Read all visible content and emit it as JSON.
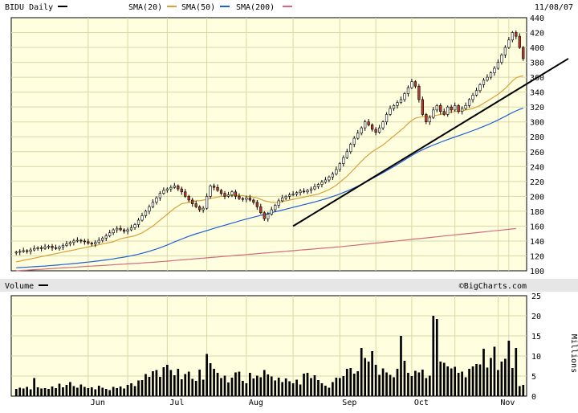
{
  "header": {
    "symbol": "BIDU Daily",
    "date": "11/08/07",
    "legend": [
      {
        "label": "SMA(20)",
        "color": "#d9a13b"
      },
      {
        "label": "SMA(50)",
        "color": "#1f5fd6"
      },
      {
        "label": "SMA(200)",
        "color": "#d46a7a"
      }
    ],
    "symbol_swatch_color": "#000000"
  },
  "volume_header": {
    "label": "Volume",
    "swatch_color": "#000000"
  },
  "watermark": "©BigCharts.com",
  "volume_unit_label": "Millions",
  "colors": {
    "plot_bg": "#ffffe0",
    "grid": "#d8d8a8",
    "up_candle": "#ffffff",
    "down_candle": "#c0392b",
    "candle_outline": "#000000",
    "volume_bar": "#000000",
    "trendline": "#000000"
  },
  "chart_data": [
    {
      "type": "candlestick",
      "title": "BIDU Daily",
      "x_labels": [
        "Jun",
        "Jul",
        "Aug",
        "Sep",
        "Oct",
        "Nov"
      ],
      "x_label_positions": [
        22,
        44,
        66,
        92,
        112,
        136
      ],
      "ylim": [
        100,
        440
      ],
      "y_ticks": [
        100,
        120,
        140,
        160,
        180,
        200,
        220,
        240,
        260,
        280,
        300,
        320,
        340,
        360,
        380,
        400,
        420,
        440
      ],
      "n_days": 142,
      "closes": [
        125,
        126,
        127,
        126,
        128,
        130,
        131,
        130,
        132,
        133,
        131,
        130,
        132,
        134,
        136,
        138,
        140,
        141,
        140,
        139,
        137,
        136,
        138,
        141,
        144,
        147,
        151,
        155,
        157,
        155,
        153,
        155,
        158,
        162,
        168,
        174,
        180,
        186,
        192,
        198,
        204,
        208,
        210,
        212,
        214,
        210,
        206,
        200,
        195,
        190,
        186,
        182,
        184,
        200,
        214,
        212,
        208,
        204,
        200,
        202,
        206,
        200,
        197,
        196,
        198,
        195,
        192,
        186,
        178,
        170,
        176,
        182,
        188,
        194,
        198,
        200,
        202,
        203,
        205,
        207,
        206,
        208,
        210,
        213,
        216,
        219,
        222,
        226,
        230,
        236,
        244,
        252,
        260,
        270,
        278,
        285,
        292,
        300,
        296,
        290,
        286,
        292,
        300,
        310,
        318,
        322,
        326,
        330,
        338,
        346,
        354,
        348,
        330,
        310,
        300,
        306,
        316,
        322,
        314,
        310,
        320,
        316,
        322,
        314,
        318,
        322,
        330,
        336,
        342,
        350,
        356,
        360,
        366,
        372,
        380,
        390,
        400,
        410,
        420,
        415,
        400,
        385
      ],
      "sma20": [
        112,
        113,
        114,
        115,
        116,
        117,
        118,
        119,
        120,
        121,
        122,
        123,
        124,
        125,
        126,
        127,
        128,
        129,
        130,
        131,
        132,
        133,
        134,
        135,
        136,
        137,
        138,
        139,
        141,
        143,
        144,
        145,
        146,
        147,
        149,
        151,
        154,
        157,
        160,
        164,
        168,
        172,
        176,
        180,
        184,
        187,
        190,
        191,
        192,
        193,
        194,
        194,
        195,
        196,
        197,
        198,
        199,
        200,
        200,
        201,
        201,
        201,
        201,
        201,
        200,
        200,
        199,
        198,
        196,
        194,
        193,
        192,
        192,
        192,
        193,
        194,
        195,
        196,
        197,
        198,
        199,
        200,
        201,
        202,
        203,
        205,
        207,
        209,
        212,
        215,
        219,
        223,
        227,
        232,
        237,
        242,
        247,
        252,
        256,
        260,
        263,
        266,
        269,
        273,
        277,
        281,
        285,
        289,
        293,
        298,
        302,
        305,
        306,
        307,
        307,
        307,
        308,
        309,
        310,
        311,
        312,
        313,
        314,
        314,
        315,
        316,
        317,
        318,
        320,
        322,
        325,
        328,
        331,
        334,
        337,
        341,
        345,
        350,
        355,
        359,
        361,
        362
      ],
      "sma50": [
        104,
        104.3,
        104.6,
        104.9,
        105.2,
        105.5,
        105.8,
        106.1,
        106.4,
        106.8,
        107.2,
        107.6,
        108,
        108.4,
        108.8,
        109.2,
        109.7,
        110.2,
        110.7,
        111.2,
        111.7,
        112.2,
        112.8,
        113.4,
        114,
        114.6,
        115.3,
        116,
        116.8,
        117.6,
        118.4,
        119.3,
        120.2,
        121.2,
        122.3,
        123.5,
        124.8,
        126.2,
        127.7,
        129.3,
        131,
        132.8,
        134.7,
        136.7,
        138.7,
        140.7,
        142.6,
        144.5,
        146.3,
        148,
        149.6,
        151.1,
        152.6,
        154,
        155.5,
        157,
        158.4,
        159.8,
        161.2,
        162.6,
        164,
        165.4,
        166.8,
        168.2,
        169.5,
        170.8,
        172,
        173.2,
        174.4,
        175.6,
        176.8,
        178,
        179.2,
        180.4,
        181.6,
        182.8,
        184,
        185.2,
        186.4,
        187.6,
        188.8,
        190,
        191.2,
        192.5,
        193.8,
        195.2,
        196.6,
        198.1,
        199.7,
        201.4,
        203.2,
        205.1,
        207.1,
        209.2,
        211.4,
        213.7,
        216.1,
        218.6,
        221.2,
        223.8,
        226.4,
        229,
        231.7,
        234.4,
        237.2,
        240,
        242.9,
        245.8,
        248.8,
        251.8,
        254.8,
        257.6,
        260.2,
        262.6,
        264.8,
        266.9,
        268.9,
        270.8,
        272.7,
        274.5,
        276.3,
        278,
        279.7,
        281.4,
        283.1,
        284.8,
        286.5,
        288.3,
        290.1,
        292,
        294,
        296,
        298.1,
        300.3,
        302.6,
        305,
        307.5,
        310,
        312.5,
        314.8,
        316.8,
        318.5
      ],
      "sma200": [
        100,
        100.3,
        100.6,
        100.9,
        101.2,
        101.5,
        101.8,
        102.1,
        102.4,
        102.7,
        103,
        103.3,
        103.6,
        103.9,
        104.2,
        104.5,
        104.8,
        105.1,
        105.4,
        105.7,
        106,
        106.3,
        106.6,
        106.9,
        107.2,
        107.5,
        107.8,
        108.1,
        108.4,
        108.7,
        109,
        109.3,
        109.6,
        109.9,
        110.2,
        110.5,
        110.8,
        111.1,
        111.4,
        111.8,
        112.2,
        112.6,
        113,
        113.4,
        113.8,
        114.2,
        114.6,
        115,
        115.4,
        115.8,
        116.2,
        116.6,
        117,
        117.4,
        117.8,
        118.2,
        118.6,
        119,
        119.4,
        119.8,
        120.2,
        120.6,
        121,
        121.4,
        121.8,
        122.2,
        122.6,
        123,
        123.4,
        123.8,
        124.2,
        124.6,
        125,
        125.4,
        125.8,
        126.2,
        126.6,
        127,
        127.4,
        127.8,
        128.2,
        128.6,
        129,
        129.4,
        129.8,
        130.2,
        130.6,
        131,
        131.4,
        131.8,
        132.2,
        132.7,
        133.2,
        133.7,
        134.2,
        134.7,
        135.2,
        135.7,
        136.2,
        136.7,
        137.2,
        137.7,
        138.2,
        138.7,
        139.2,
        139.7,
        140.2,
        140.7,
        141.2,
        141.7,
        142.2,
        142.7,
        143.2,
        143.7,
        144.2,
        144.7,
        145.2,
        145.7,
        146.2,
        146.7,
        147.2,
        147.7,
        148.2,
        148.7,
        149.2,
        149.7,
        150.2,
        150.7,
        151.2,
        151.7,
        152.2,
        152.7,
        153.2,
        153.7,
        154.2,
        154.7,
        155.2,
        155.7,
        156.2,
        156.7
      ],
      "trendline": {
        "start": [
          77,
          160
        ],
        "end": [
          160,
          385
        ]
      }
    },
    {
      "type": "bar",
      "title": "Volume",
      "ylabel": "Millions",
      "ylim": [
        0,
        25
      ],
      "y_ticks": [
        0,
        5,
        10,
        15,
        20,
        25
      ],
      "values": [
        1.8,
        2.1,
        1.9,
        2.3,
        1.7,
        4.5,
        2.2,
        1.9,
        2.0,
        1.8,
        2.4,
        2.0,
        3.1,
        2.2,
        2.8,
        3.5,
        2.5,
        2.1,
        2.9,
        2.3,
        2.0,
        2.2,
        1.7,
        2.6,
        2.1,
        1.8,
        1.5,
        2.3,
        2.0,
        2.4,
        1.9,
        2.8,
        3.2,
        2.5,
        3.9,
        4.0,
        5.5,
        4.8,
        6.2,
        6.5,
        4.8,
        7.2,
        7.8,
        6.5,
        5.2,
        6.8,
        4.2,
        5.5,
        6.1,
        4.3,
        3.8,
        6.6,
        4.1,
        10.5,
        8.2,
        6.8,
        5.8,
        4.5,
        5.1,
        3.4,
        4.6,
        5.9,
        6.1,
        3.8,
        3.2,
        5.8,
        4.4,
        5.1,
        4.7,
        6.5,
        5.4,
        4.9,
        3.9,
        4.6,
        3.5,
        4.4,
        3.7,
        3.2,
        4.1,
        2.9,
        5.6,
        5.8,
        4.5,
        5.2,
        4.0,
        3.2,
        2.6,
        2.1,
        3.5,
        4.6,
        4.5,
        5.0,
        6.8,
        7.0,
        5.6,
        6.2,
        12.0,
        9.5,
        8.6,
        11.2,
        7.8,
        5.3,
        6.9,
        5.9,
        5.3,
        4.7,
        6.8,
        15.0,
        8.8,
        5.8,
        5.0,
        6.3,
        5.9,
        6.6,
        4.5,
        5.1,
        20.0,
        19.2,
        8.6,
        8.3,
        7.4,
        6.9,
        7.3,
        5.8,
        6.1,
        4.7,
        6.8,
        7.4,
        8.0,
        7.9,
        11.8,
        7.1,
        9.5,
        12.3,
        6.5,
        8.6,
        9.3,
        13.8,
        7.0,
        12.0,
        2.5,
        2.8
      ]
    }
  ]
}
